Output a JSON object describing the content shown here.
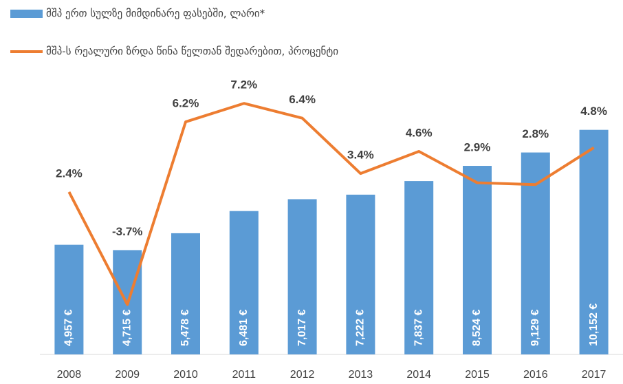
{
  "chart_data": {
    "type": "bar_line",
    "categories": [
      "2008",
      "2009",
      "2010",
      "2011",
      "2012",
      "2013",
      "2014",
      "2015",
      "2016",
      "2017"
    ],
    "series": [
      {
        "name": "მშპ ერთ სულზე მიმდინარე ფასებში, ლარი*",
        "type": "bar",
        "color": "#5b9bd5",
        "values": [
          4957,
          4715,
          5478,
          6481,
          7017,
          7222,
          7837,
          8524,
          9129,
          10152
        ],
        "value_labels": [
          "4,957 €",
          "4,715 €",
          "5,478 €",
          "6,481 €",
          "7,017 €",
          "7,222 €",
          "7,837 €",
          "8,524 €",
          "9,129 €",
          "10,152 €"
        ]
      },
      {
        "name": "მშპ-ს რეალური ზრდა წინა წელთან შედარებით, პროცენტი",
        "type": "line",
        "axis": "y2",
        "color": "#ed7d31",
        "values": [
          2.4,
          -3.7,
          6.2,
          7.2,
          6.4,
          3.4,
          4.6,
          2.9,
          2.8,
          4.8
        ],
        "value_labels": [
          "2.4%",
          "-3.7%",
          "6.2%",
          "7.2%",
          "6.4%",
          "3.4%",
          "4.6%",
          "2.9%",
          "2.8%",
          "4.8%"
        ]
      }
    ],
    "ylim": [
      0,
      12600
    ],
    "y2lim": [
      -6.4,
      8.7
    ]
  }
}
